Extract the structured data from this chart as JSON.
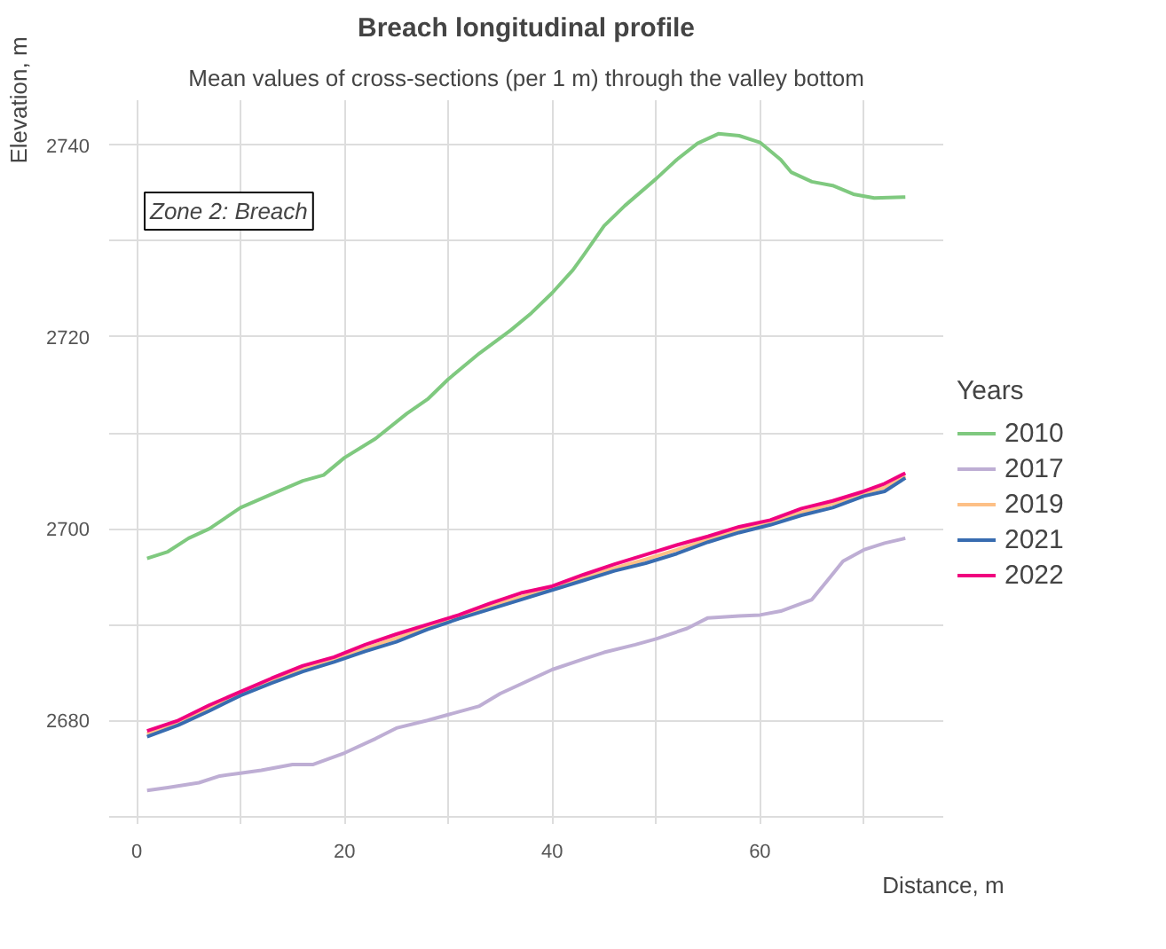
{
  "chart_data": {
    "type": "line",
    "title": "Breach longitudinal profile",
    "subtitle": "Mean values of cross-sections (per 1 m) through the valley bottom",
    "xlabel": "Distance, m",
    "ylabel": "Elevation, m",
    "legend_title": "Years",
    "legend": "right",
    "grid": true,
    "line_style": "solid",
    "annotations": [
      "Zone 2: Breach"
    ],
    "xlim": [
      -2.65,
      77.65
    ],
    "xticks": [
      0,
      {
        "value": 10,
        "label": null
      },
      20,
      {
        "value": 30,
        "label": null
      },
      40,
      {
        "value": 50,
        "label": null
      },
      60,
      {
        "value": 70,
        "label": null
      }
    ],
    "ylim": [
      2669.2,
      2744.7
    ],
    "yticks": [
      {
        "value": 2670,
        "label": null
      },
      2680,
      {
        "value": 2690,
        "label": null
      },
      2700,
      {
        "value": 2710,
        "label": null
      },
      2720,
      {
        "value": 2730,
        "label": null
      },
      2740
    ],
    "series": [
      {
        "name": "2010",
        "color": "#7fc97f",
        "x": [
          1,
          3,
          5,
          7,
          10,
          13,
          16,
          18,
          20,
          23,
          26,
          28,
          30,
          33,
          36,
          38,
          40,
          42,
          43,
          45,
          47,
          50,
          52,
          54,
          56,
          58,
          60,
          62,
          63,
          65,
          67,
          69,
          71,
          74
        ],
        "values": [
          2696.9,
          2697.6,
          2699,
          2700,
          2702.2,
          2703.6,
          2705,
          2705.6,
          2707.4,
          2709.4,
          2712,
          2713.5,
          2715.6,
          2718.3,
          2720.7,
          2722.5,
          2724.6,
          2727,
          2728.5,
          2731.6,
          2733.7,
          2736.5,
          2738.5,
          2740.2,
          2741.2,
          2741,
          2740.3,
          2738.5,
          2737.2,
          2736.2,
          2735.8,
          2734.9,
          2734.5,
          2734.6
        ]
      },
      {
        "name": "2017",
        "color": "#beaed4",
        "x": [
          1,
          3,
          6,
          8,
          10,
          12,
          15,
          17,
          20,
          23,
          25,
          28,
          30,
          33,
          35,
          37,
          40,
          43,
          45,
          48,
          50,
          53,
          55,
          58,
          60,
          62,
          65,
          66.5,
          68,
          70,
          72,
          74
        ],
        "values": [
          2672.7,
          2673,
          2673.5,
          2674.2,
          2674.5,
          2674.8,
          2675.4,
          2675.4,
          2676.6,
          2678.1,
          2679.2,
          2680,
          2680.6,
          2681.5,
          2682.8,
          2683.8,
          2685.3,
          2686.4,
          2687.1,
          2687.9,
          2688.5,
          2689.6,
          2690.7,
          2690.9,
          2691,
          2691.4,
          2692.6,
          2694.6,
          2696.6,
          2697.8,
          2698.5,
          2699
        ]
      },
      {
        "name": "2019",
        "color": "#fdc086",
        "x": [
          1,
          4,
          7,
          10,
          13,
          16,
          19,
          22,
          25,
          28,
          31,
          34,
          37,
          40,
          43,
          46,
          49,
          52,
          55,
          58,
          61,
          64,
          67,
          70,
          72,
          74
        ],
        "values": [
          2678.6,
          2679.8,
          2681.3,
          2682.8,
          2684.2,
          2685.4,
          2686.4,
          2687.5,
          2688.6,
          2689.8,
          2690.8,
          2691.9,
          2692.9,
          2693.8,
          2694.9,
          2695.9,
          2696.8,
          2697.8,
          2698.9,
          2699.9,
          2700.7,
          2701.7,
          2702.6,
          2703.7,
          2704.3,
          2705.5
        ]
      },
      {
        "name": "2021",
        "color": "#386cb0",
        "x": [
          1,
          4,
          7,
          10,
          13,
          16,
          19,
          22,
          25,
          28,
          31,
          34,
          37,
          40,
          43,
          46,
          49,
          52,
          55,
          58,
          61,
          64,
          67,
          70,
          72,
          74
        ],
        "values": [
          2678.3,
          2679.5,
          2681.0,
          2682.6,
          2683.9,
          2685.1,
          2686.1,
          2687.2,
          2688.2,
          2689.5,
          2690.6,
          2691.6,
          2692.6,
          2693.6,
          2694.6,
          2695.6,
          2696.4,
          2697.4,
          2698.6,
          2699.6,
          2700.4,
          2701.4,
          2702.2,
          2703.4,
          2703.9,
          2705.3
        ]
      },
      {
        "name": "2022",
        "color": "#f0027f",
        "x": [
          1,
          4,
          7,
          10,
          13,
          16,
          19,
          22,
          25,
          28,
          31,
          34,
          37,
          40,
          43,
          46,
          49,
          52,
          55,
          58,
          61,
          64,
          67,
          70,
          72,
          74
        ],
        "values": [
          2678.9,
          2680.0,
          2681.6,
          2683.0,
          2684.4,
          2685.7,
          2686.6,
          2687.9,
          2689.0,
          2690.0,
          2691.0,
          2692.2,
          2693.3,
          2694.0,
          2695.2,
          2696.3,
          2697.3,
          2698.3,
          2699.2,
          2700.2,
          2700.9,
          2702.1,
          2702.9,
          2703.9,
          2704.7,
          2705.8
        ]
      }
    ]
  }
}
